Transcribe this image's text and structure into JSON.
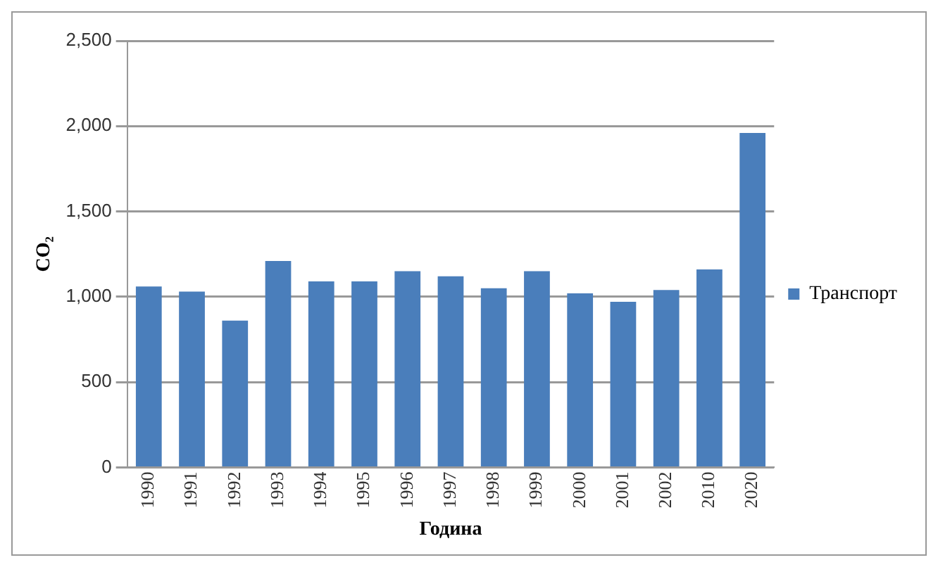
{
  "chart_data": {
    "type": "bar",
    "xlabel": "Година",
    "ylabel": "CO₂",
    "categories": [
      "1990",
      "1991",
      "1992",
      "1993",
      "1994",
      "1995",
      "1996",
      "1997",
      "1998",
      "1999",
      "2000",
      "2001",
      "2002",
      "2010",
      "2020"
    ],
    "series": [
      {
        "name": "Транспорт",
        "color": "#4a7ebb",
        "values": [
          1060,
          1030,
          860,
          1210,
          1090,
          1090,
          1150,
          1120,
          1050,
          1150,
          1020,
          970,
          1040,
          1160,
          1960
        ]
      }
    ],
    "ylim": [
      0,
      2500
    ],
    "yticks": [
      0,
      500,
      {
        "value": 1000,
        "label": "1,000"
      },
      {
        "value": 1500,
        "label": "1,500"
      },
      {
        "value": 2000,
        "label": "2,000"
      },
      {
        "value": 2500,
        "label": "2,500"
      }
    ],
    "grid": "y",
    "legend": "right"
  }
}
